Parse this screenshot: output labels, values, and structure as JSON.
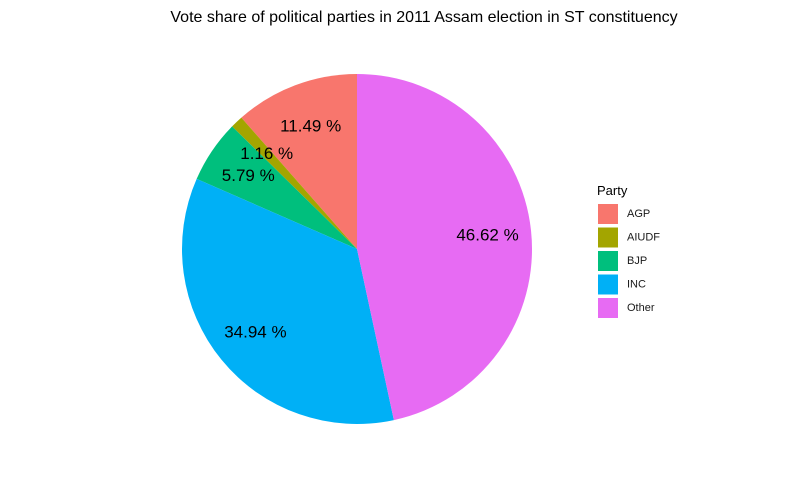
{
  "chart_data": {
    "type": "pie",
    "title": "Vote share of political parties in 2011 Assam election in ST constituency",
    "legend": {
      "title": "Party",
      "placement": "right"
    },
    "label_suffix": " %",
    "slices": [
      {
        "name": "AGP",
        "value": 11.49,
        "label": "11.49 %",
        "color": "#F8766D"
      },
      {
        "name": "AIUDF",
        "value": 1.16,
        "label": "1.16 %",
        "color": "#A3A500"
      },
      {
        "name": "BJP",
        "value": 5.79,
        "label": "5.79 %",
        "color": "#00BF7D"
      },
      {
        "name": "INC",
        "value": 34.94,
        "label": "34.94 %",
        "color": "#00B0F6"
      },
      {
        "name": "Other",
        "value": 46.62,
        "label": "46.62 %",
        "color": "#E76BF3"
      }
    ],
    "direction": "counter-clockwise from 12 o'clock",
    "grid": false
  }
}
